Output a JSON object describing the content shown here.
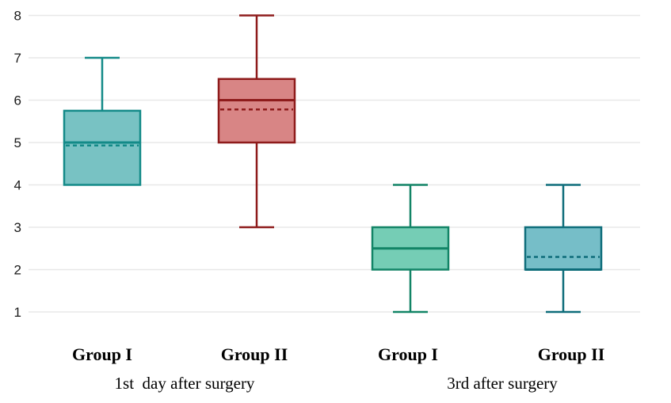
{
  "chart_data": {
    "type": "boxplot",
    "title": "",
    "xlabel": "",
    "ylabel": "",
    "ylim": [
      1,
      8
    ],
    "yticks": [
      "1",
      "2",
      "3",
      "4",
      "5",
      "6",
      "7",
      "8"
    ],
    "grid": true,
    "legend": "none",
    "periods": [
      {
        "label": "1st  day after surgery"
      },
      {
        "label": "3rd after surgery"
      }
    ],
    "series": [
      {
        "name": "Group I",
        "period": 0,
        "min": 4,
        "q1": 4,
        "median": 5,
        "q3": 5.75,
        "max": 7,
        "mean": 4.93,
        "fill": "#78c2c3",
        "stroke": "#138a88"
      },
      {
        "name": "Group II",
        "period": 0,
        "min": 3,
        "q1": 5,
        "median": 6,
        "q3": 6.5,
        "max": 8,
        "mean": 5.78,
        "fill": "#d88585",
        "stroke": "#8e1b1b"
      },
      {
        "name": "Group I",
        "period": 1,
        "min": 1,
        "q1": 2,
        "median": 2.5,
        "q3": 3,
        "max": 4,
        "mean": 2.5,
        "fill": "#75cdb5",
        "stroke": "#128466"
      },
      {
        "name": "Group II",
        "period": 1,
        "min": 1,
        "q1": 2,
        "median": 2,
        "q3": 3,
        "max": 4,
        "mean": 2.3,
        "fill": "#76bec8",
        "stroke": "#0e6d7a"
      }
    ]
  }
}
